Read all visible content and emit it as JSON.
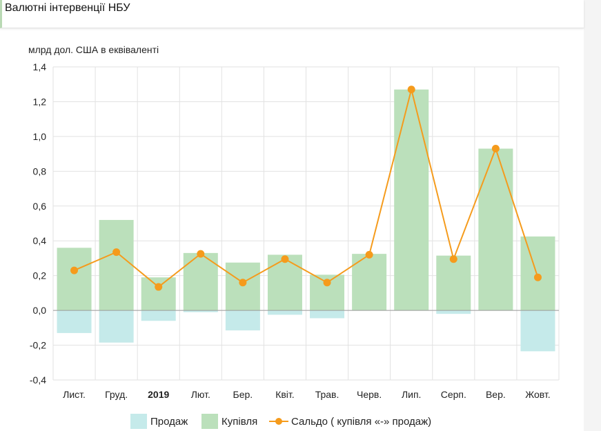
{
  "header": {
    "title": "Валютні інтервенції НБУ"
  },
  "chart_data": {
    "type": "bar",
    "ylabel": "млрд дол. США в еквіваленті",
    "ylim": [
      -0.4,
      1.4
    ],
    "yticks": [
      "-0,4",
      "-0,2",
      "0,0",
      "0,2",
      "0,4",
      "0,6",
      "0,8",
      "1,0",
      "1,2",
      "1,4"
    ],
    "ytick_values": [
      -0.4,
      -0.2,
      0.0,
      0.2,
      0.4,
      0.6,
      0.8,
      1.0,
      1.2,
      1.4
    ],
    "categories": [
      "Лист.",
      "Груд.",
      "2019",
      "Лют.",
      "Бер.",
      "Квіт.",
      "Трав.",
      "Черв.",
      "Лип.",
      "Серп.",
      "Вер.",
      "Жовт."
    ],
    "bold_categories": [
      "2019"
    ],
    "grid": true,
    "legend_position": "bottom",
    "series": [
      {
        "name": "Продаж",
        "kind": "bar",
        "color": "#c5eaea",
        "values": [
          -0.13,
          -0.185,
          -0.06,
          -0.01,
          -0.115,
          -0.025,
          -0.045,
          0.0,
          0.0,
          -0.02,
          0.0,
          -0.235
        ]
      },
      {
        "name": "Купівля",
        "kind": "bar",
        "color": "#bbe0bb",
        "values": [
          0.36,
          0.52,
          0.19,
          0.33,
          0.275,
          0.32,
          0.205,
          0.325,
          1.27,
          0.315,
          0.93,
          0.425
        ]
      },
      {
        "name": "Сальдо ( купівля «-» продаж)",
        "kind": "line",
        "color": "#f59b1c",
        "values": [
          0.23,
          0.335,
          0.135,
          0.325,
          0.16,
          0.295,
          0.16,
          0.32,
          1.27,
          0.295,
          0.93,
          0.19
        ]
      }
    ]
  }
}
